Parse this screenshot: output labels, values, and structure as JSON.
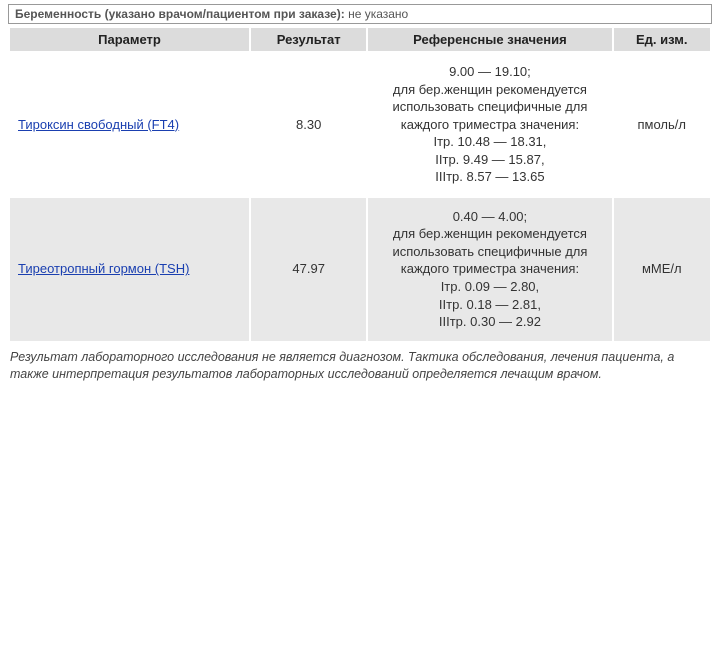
{
  "top_box": {
    "label": "Беременность (указано врачом/пациентом при заказе):",
    "value": "не указано"
  },
  "table": {
    "headers": {
      "param": "Параметр",
      "result": "Результат",
      "ref": "Референсные значения",
      "unit": "Ед. изм."
    },
    "rows": [
      {
        "param": "Тироксин свободный (FT4)",
        "result": "8.30",
        "ref": "9.00 — 19.10;\nдля бер.женщин рекомендуется использовать специфичные для каждого триместра значения:\nIтр. 10.48 — 18.31,\nIIтр. 9.49 — 15.87,\nIIIтр. 8.57 — 13.65",
        "unit": "пмоль/л"
      },
      {
        "param": "Тиреотропный гормон (TSH)",
        "result": "47.97",
        "ref": "0.40 — 4.00;\nдля бер.женщин рекомендуется использовать специфичные для каждого триместра значения:\nIтр. 0.09 — 2.80,\nIIтр. 0.18 — 2.81,\nIIIтр. 0.30 — 2.92",
        "unit": "мМЕ/л"
      }
    ]
  },
  "disclaimer": "Результат лабораторного исследования не является диагнозом. Тактика обследования, лечения пациента, а также интерпретация результатов лабораторных исследований определяется лечащим врачом."
}
